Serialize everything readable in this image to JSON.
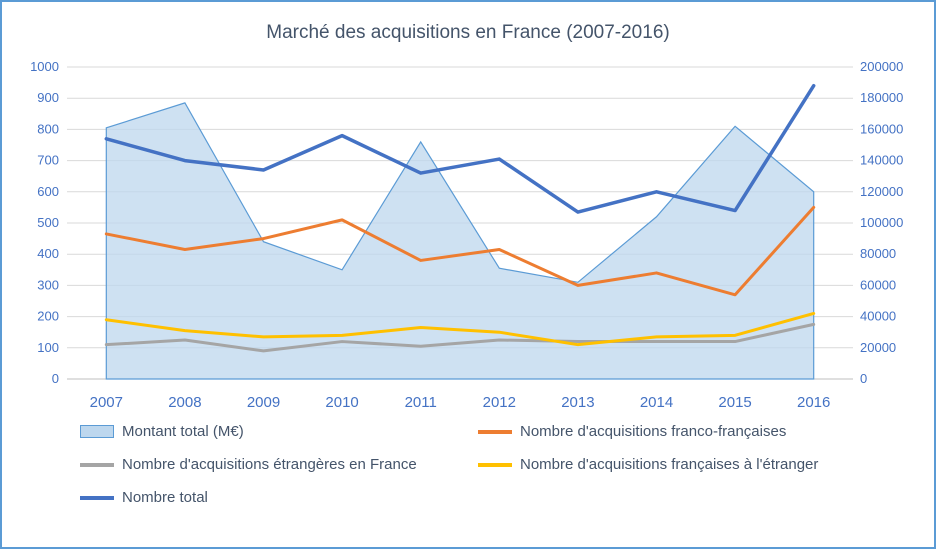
{
  "frame": {
    "border_color": "#5B9BD5",
    "background_color": "#FFFFFF"
  },
  "chart_data": {
    "type": "area+line",
    "title": "Marché des acquisitions en France (2007-2016)",
    "title_color": "#44546A",
    "axis_label_color": "#4472C4",
    "gridline_color": "#D9D9D9",
    "grid": true,
    "legend_position": "bottom",
    "categories": [
      "2007",
      "2008",
      "2009",
      "2010",
      "2011",
      "2012",
      "2013",
      "2014",
      "2015",
      "2016"
    ],
    "left_axis": {
      "min": 0,
      "max": 1000,
      "step": 100,
      "ticks": [
        0,
        100,
        200,
        300,
        400,
        500,
        600,
        700,
        800,
        900,
        1000
      ]
    },
    "right_axis": {
      "min": 0,
      "max": 200000,
      "step": 20000,
      "ticks": [
        0,
        20000,
        40000,
        60000,
        80000,
        100000,
        120000,
        140000,
        160000,
        180000,
        200000
      ]
    },
    "series": [
      {
        "name": "Montant total (M€)",
        "type": "area",
        "axis": "left",
        "color": "#5B9BD5",
        "fill": "#BDD7EE",
        "values": [
          805,
          885,
          440,
          350,
          760,
          355,
          310,
          520,
          810,
          600
        ]
      },
      {
        "name": "Nombre d'acquisitions franco-françaises",
        "type": "line",
        "axis": "right",
        "color": "#ED7D31",
        "width": 3,
        "values": [
          93000,
          83000,
          90000,
          102000,
          76000,
          83000,
          60000,
          68000,
          54000,
          110000
        ]
      },
      {
        "name": "Nombre d'acquisitions étrangères en France",
        "type": "line",
        "axis": "right",
        "color": "#A5A5A5",
        "width": 3,
        "values": [
          22000,
          25000,
          18000,
          24000,
          21000,
          25000,
          24000,
          24000,
          24000,
          35000
        ]
      },
      {
        "name": "Nombre d'acquisitions françaises à l'étranger",
        "type": "line",
        "axis": "right",
        "color": "#FFC000",
        "width": 3,
        "values": [
          38000,
          31000,
          27000,
          28000,
          33000,
          30000,
          22000,
          27000,
          28000,
          42000
        ]
      },
      {
        "name": "Nombre total",
        "type": "line",
        "axis": "right",
        "color": "#4472C4",
        "width": 3.5,
        "values": [
          154000,
          140000,
          134000,
          156000,
          132000,
          141000,
          107000,
          120000,
          108000,
          188000
        ]
      }
    ]
  }
}
